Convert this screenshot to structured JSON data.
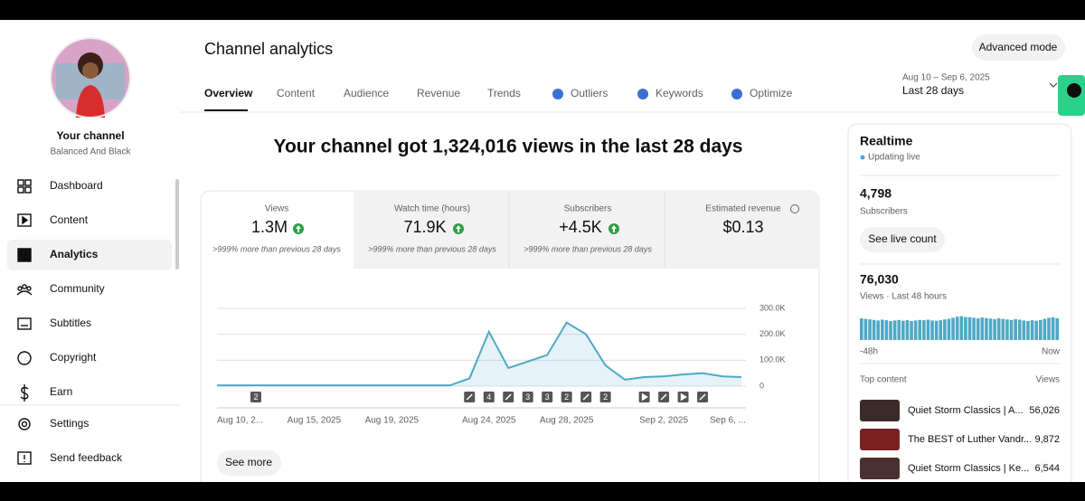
{
  "sidebar": {
    "channel_label": "Your channel",
    "channel_name": "Balanced And Black",
    "nav": [
      "Dashboard",
      "Content",
      "Analytics",
      "Community",
      "Subtitles",
      "Copyright",
      "Earn"
    ],
    "footer": [
      "Settings",
      "Send feedback"
    ]
  },
  "header": {
    "title": "Channel analytics",
    "advanced_button": "Advanced mode",
    "date_range": "Aug 10 – Sep 6, 2025",
    "period": "Last 28 days",
    "tabs": [
      "Overview",
      "Content",
      "Audience",
      "Revenue",
      "Trends",
      "Outliers",
      "Keywords",
      "Optimize"
    ]
  },
  "summary": "Your channel got 1,324,016 views in the last 28 days",
  "metrics": [
    {
      "label": "Views",
      "value": "1.3M",
      "change": ">999% more than previous 28 days"
    },
    {
      "label": "Watch time (hours)",
      "value": "71.9K",
      "change": ">999% more than previous 28 days"
    },
    {
      "label": "Subscribers",
      "value": "+4.5K",
      "change": ">999% more than previous 28 days"
    },
    {
      "label": "Estimated revenue",
      "value": "$0.13"
    }
  ],
  "chart_data": {
    "type": "line",
    "color": "#4fa8c6",
    "categories": [
      "Aug 10, 2...",
      null,
      null,
      null,
      null,
      "Aug 15, 2025",
      null,
      null,
      null,
      "Aug 19, 2025",
      null,
      null,
      null,
      null,
      "Aug 24, 2025",
      null,
      null,
      null,
      "Aug 28, 2025",
      null,
      null,
      null,
      null,
      "Sep 2, 2025",
      null,
      null,
      null,
      "Sep 6, ..."
    ],
    "values": [
      3000,
      3000,
      3000,
      3000,
      3000,
      3000,
      3000,
      3000,
      3000,
      3000,
      3000,
      3000,
      3000,
      30000,
      210000,
      70000,
      95000,
      120000,
      245000,
      200000,
      80000,
      25000,
      35000,
      38000,
      45000,
      50000,
      38000,
      35000
    ],
    "markers": [
      null,
      null,
      "2",
      null,
      null,
      null,
      null,
      null,
      null,
      null,
      null,
      null,
      null,
      null,
      "4",
      null,
      "3",
      "3",
      "2",
      null,
      "2",
      null,
      null,
      null,
      null,
      null,
      null,
      null
    ],
    "ylim": [
      0,
      300000
    ],
    "yticks": [
      0,
      {
        "value": 100000,
        "label": "100.0K"
      },
      {
        "value": 200000,
        "label": "200.0K"
      },
      {
        "value": 300000,
        "label": "300.0K"
      }
    ],
    "grid": true
  },
  "see_more": "See more",
  "realtime": {
    "title": "Realtime",
    "status": "Updating live",
    "subscribers": "4,798",
    "subscribers_label": "Subscribers",
    "live_button": "See live count",
    "views": "76,030",
    "views_label": "Views · Last 48 hours",
    "bars": [
      80,
      78,
      76,
      74,
      72,
      75,
      73,
      70,
      72,
      74,
      71,
      73,
      70,
      72,
      74,
      73,
      75,
      72,
      71,
      73,
      76,
      78,
      82,
      86,
      88,
      85,
      84,
      82,
      80,
      83,
      81,
      79,
      77,
      80,
      78,
      76,
      74,
      77,
      75,
      72,
      70,
      73,
      71,
      74,
      78,
      82,
      84,
      80
    ],
    "start_label": "-48h",
    "end_label": "Now",
    "top_label": "Top content",
    "views_col": "Views",
    "top": [
      {
        "title": "Quiet Storm Classics | A...",
        "views": "56,026"
      },
      {
        "title": "The BEST of Luther Vandr...",
        "views": "9,872"
      },
      {
        "title": "Quiet Storm Classics | Ke...",
        "views": "6,544"
      }
    ]
  }
}
